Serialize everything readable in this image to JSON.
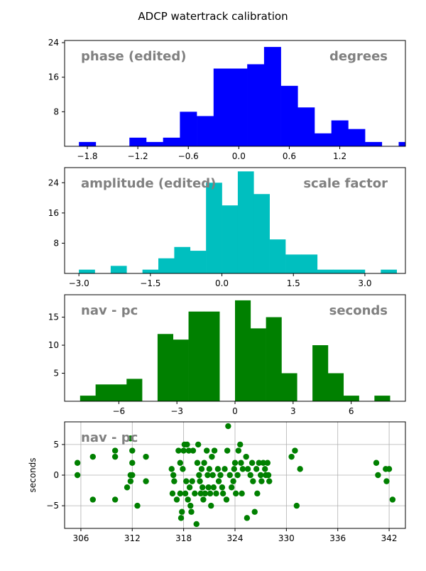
{
  "figure": {
    "title": "ADCP watertrack calibration"
  },
  "chart_data": [
    {
      "type": "bar",
      "color": "#0000ff",
      "annotation_left": "phase (edited)",
      "annotation_right": "degrees",
      "ylabel": "",
      "xlim": [
        -2.07,
        1.98
      ],
      "ylim": [
        0,
        24.5
      ],
      "xticks": [
        -1.8,
        -1.2,
        -0.6,
        0.0,
        0.6,
        1.2
      ],
      "xtick_labels": [
        "−1.8",
        "−1.2",
        "−0.6",
        "0.0",
        "0.6",
        "1.2"
      ],
      "yticks": [
        8,
        16,
        24
      ],
      "ytick_labels": [
        "8",
        "16",
        "24"
      ],
      "bin_start": -1.9,
      "bin_width": 0.2,
      "counts": [
        1,
        0,
        0,
        2,
        1,
        2,
        8,
        7,
        18,
        18,
        19,
        23,
        14,
        9,
        3,
        6,
        4,
        1,
        0,
        1
      ],
      "grid": false
    },
    {
      "type": "bar",
      "color": "#00bfbf",
      "annotation_left": "amplitude (edited)",
      "annotation_right": "scale factor",
      "ylabel": "",
      "xlim": [
        -3.3,
        3.85
      ],
      "ylim": [
        0,
        28
      ],
      "xticks": [
        -3.0,
        -1.5,
        0.0,
        1.5,
        3.0
      ],
      "xtick_labels": [
        "−3.0",
        "−1.5",
        "0.0",
        "1.5",
        "3.0"
      ],
      "yticks": [
        8,
        16,
        24
      ],
      "ytick_labels": [
        "8",
        "16",
        "24"
      ],
      "bin_start": -3.0,
      "bin_width": 0.3333333,
      "counts": [
        1,
        0,
        2,
        0,
        1,
        4,
        7,
        6,
        24,
        18,
        27,
        21,
        9,
        5,
        5,
        1,
        1,
        1,
        0,
        1
      ],
      "grid": false
    },
    {
      "type": "bar",
      "color": "#008000",
      "annotation_left": "nav - pc",
      "annotation_right": "seconds",
      "ylabel": "",
      "xlim": [
        -8.8,
        8.8
      ],
      "ylim": [
        0,
        19
      ],
      "xticks": [
        -6,
        -3,
        0,
        3,
        6
      ],
      "xtick_labels": [
        "−6",
        "−3",
        "0",
        "3",
        "6"
      ],
      "yticks": [
        5,
        10,
        15
      ],
      "ytick_labels": [
        "5",
        "10",
        "15"
      ],
      "bin_start": -8,
      "bin_width": 0.8,
      "counts": [
        1,
        3,
        3,
        4,
        0,
        12,
        11,
        16,
        16,
        0,
        18,
        13,
        15,
        5,
        0,
        10,
        5,
        1,
        0,
        1
      ],
      "grid": false
    },
    {
      "type": "scatter",
      "color": "#008000",
      "annotation_left": "nav - pc",
      "annotation_right": "",
      "ylabel": "seconds",
      "xlim": [
        304.1,
        343.9
      ],
      "ylim": [
        -8.7,
        8.7
      ],
      "xticks": [
        306,
        312,
        318,
        324,
        330,
        336,
        342
      ],
      "xtick_labels": [
        "306",
        "312",
        "318",
        "324",
        "330",
        "336",
        "342"
      ],
      "yticks": [
        -5,
        0,
        5
      ],
      "ytick_labels": [
        "−5",
        "0",
        "5"
      ],
      "grid": true,
      "points": [
        [
          305.6,
          2
        ],
        [
          305.6,
          0
        ],
        [
          307.4,
          3
        ],
        [
          307.4,
          -4
        ],
        [
          310.0,
          4
        ],
        [
          310.0,
          3
        ],
        [
          310.0,
          -4
        ],
        [
          311.4,
          -2
        ],
        [
          311.8,
          6
        ],
        [
          311.8,
          0
        ],
        [
          311.8,
          -1
        ],
        [
          312.0,
          4
        ],
        [
          312.0,
          0
        ],
        [
          312.0,
          2
        ],
        [
          312.6,
          -5
        ],
        [
          313.6,
          3
        ],
        [
          313.6,
          -1
        ],
        [
          316.6,
          1
        ],
        [
          316.7,
          -3
        ],
        [
          316.8,
          0
        ],
        [
          316.9,
          -1
        ],
        [
          317.2,
          -4
        ],
        [
          317.4,
          4
        ],
        [
          317.6,
          2
        ],
        [
          317.6,
          -3
        ],
        [
          317.7,
          -7
        ],
        [
          317.8,
          -6
        ],
        [
          317.9,
          1
        ],
        [
          318.0,
          4
        ],
        [
          318.1,
          5
        ],
        [
          318.2,
          -3
        ],
        [
          318.3,
          -1
        ],
        [
          318.4,
          5
        ],
        [
          318.5,
          -4
        ],
        [
          318.6,
          4
        ],
        [
          318.7,
          -2
        ],
        [
          318.8,
          -5
        ],
        [
          318.9,
          -6
        ],
        [
          319.0,
          -1
        ],
        [
          319.1,
          4
        ],
        [
          319.3,
          -3
        ],
        [
          319.5,
          -8
        ],
        [
          319.6,
          2
        ],
        [
          319.7,
          5
        ],
        [
          319.8,
          0
        ],
        [
          319.9,
          -1
        ],
        [
          320.0,
          -3
        ],
        [
          320.1,
          1
        ],
        [
          320.2,
          -2
        ],
        [
          320.3,
          -4
        ],
        [
          320.4,
          2
        ],
        [
          320.5,
          -3
        ],
        [
          320.7,
          4
        ],
        [
          320.8,
          0
        ],
        [
          320.9,
          -2
        ],
        [
          321.0,
          1
        ],
        [
          321.1,
          -3
        ],
        [
          321.2,
          -5
        ],
        [
          321.3,
          3
        ],
        [
          321.4,
          0
        ],
        [
          321.5,
          -2
        ],
        [
          321.6,
          4
        ],
        [
          321.8,
          -3
        ],
        [
          322.0,
          1
        ],
        [
          322.1,
          -1
        ],
        [
          322.3,
          0
        ],
        [
          322.5,
          -2
        ],
        [
          322.6,
          -3
        ],
        [
          322.8,
          1
        ],
        [
          323.0,
          -4
        ],
        [
          323.1,
          4
        ],
        [
          323.2,
          8
        ],
        [
          323.4,
          0
        ],
        [
          323.6,
          -2
        ],
        [
          323.8,
          -1
        ],
        [
          323.9,
          1
        ],
        [
          324.0,
          2
        ],
        [
          324.1,
          -3
        ],
        [
          324.3,
          0
        ],
        [
          324.4,
          4
        ],
        [
          324.6,
          5
        ],
        [
          324.7,
          2
        ],
        [
          324.8,
          -3
        ],
        [
          324.9,
          1
        ],
        [
          325.3,
          3
        ],
        [
          325.4,
          -7
        ],
        [
          325.5,
          1
        ],
        [
          325.8,
          0
        ],
        [
          326.0,
          2
        ],
        [
          326.1,
          -1
        ],
        [
          326.3,
          -6
        ],
        [
          326.5,
          1
        ],
        [
          326.6,
          -3
        ],
        [
          326.8,
          2
        ],
        [
          327.0,
          0
        ],
        [
          327.1,
          -1
        ],
        [
          327.3,
          2
        ],
        [
          327.5,
          1
        ],
        [
          327.6,
          0
        ],
        [
          327.8,
          2
        ],
        [
          327.9,
          0
        ],
        [
          328.0,
          -1
        ],
        [
          330.6,
          3
        ],
        [
          331.0,
          4
        ],
        [
          331.2,
          -5
        ],
        [
          331.6,
          1
        ],
        [
          340.5,
          2
        ],
        [
          340.7,
          0
        ],
        [
          341.6,
          1
        ],
        [
          341.7,
          -1
        ],
        [
          342.0,
          1
        ],
        [
          342.4,
          -4
        ]
      ]
    }
  ]
}
